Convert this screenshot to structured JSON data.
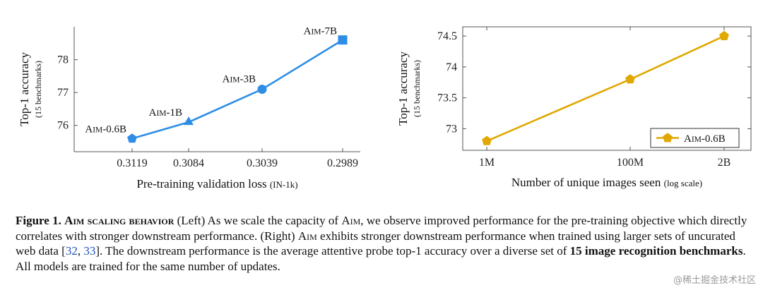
{
  "chart_data": [
    {
      "type": "line",
      "x_categories": [
        "0.3119",
        "0.3084",
        "0.3039",
        "0.2989"
      ],
      "series": [
        {
          "values": [
            75.6,
            76.1,
            77.1,
            78.6
          ],
          "points": [
            "Aim-0.6B",
            "Aim-1B",
            "Aim-3B",
            "Aim-7B"
          ],
          "markers": [
            "pentagon",
            "triangle",
            "circle",
            "square"
          ]
        }
      ],
      "ylabel": "Top-1 accuracy",
      "ylabel_sub": "(15 benchmarks)",
      "xlabel": "Pre-training validation loss",
      "xlabel_sub": "(IN-1k)",
      "yticks": [
        "76",
        "77",
        "78"
      ],
      "ylim": [
        75.2,
        79.0
      ],
      "color": "#2e8ee6"
    },
    {
      "type": "line",
      "x_categories": [
        "1M",
        "100M",
        "2B"
      ],
      "x_scale": "log",
      "series": [
        {
          "name": "Aim-0.6B",
          "values": [
            72.8,
            73.8,
            74.5
          ],
          "marker": "pentagon"
        }
      ],
      "ylabel": "Top-1 accuracy",
      "ylabel_sub": "(15 benchmarks)",
      "xlabel": "Number of unique images seen",
      "xlabel_sub": "(log scale)",
      "yticks": [
        "73",
        "73.5",
        "74",
        "74.5"
      ],
      "ylim": [
        72.65,
        74.65
      ],
      "legend": "bottom-right",
      "color": "#e0a800"
    }
  ],
  "caption": {
    "fig": "Figure 1.",
    "title": "Aim scaling behavior",
    "text1": " (Left) As we scale the capacity of ",
    "aim": "Aim",
    "text2": ", we observe improved performance for the pre-training objective which directly correlates with stronger downstream performance. (Right) ",
    "text3": " exhibits stronger downstream performance when trained using larger sets of uncurated web data [",
    "cite1": "32",
    "sep": ", ",
    "cite2": "33",
    "text4": "]. The downstream performance is the average attentive probe top-1 accuracy over a diverse set of ",
    "bold2": "15 image recognition benchmarks",
    "text5": ". All models are trained for the same number of updates."
  },
  "watermark": "@稀土掘金技术社区"
}
